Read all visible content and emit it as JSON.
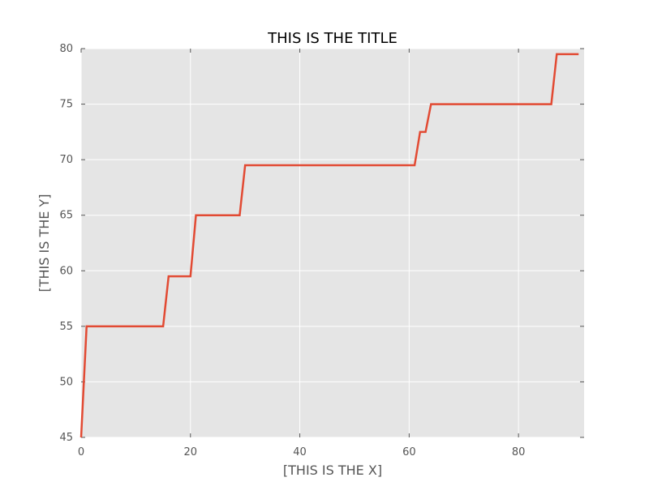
{
  "chart_data": {
    "type": "line",
    "title": "THIS IS THE TITLE",
    "xlabel": "[THIS IS THE X]",
    "ylabel": "[THIS IS THE Y]",
    "xlim": [
      0,
      92
    ],
    "ylim": [
      45,
      80
    ],
    "x_ticks": [
      "0",
      "20",
      "40",
      "60",
      "80"
    ],
    "y_ticks": [
      "45",
      "50",
      "55",
      "60",
      "65",
      "70",
      "75",
      "80"
    ],
    "grid": true,
    "background_color": "#e5e5e5",
    "line_color": "#e24a33",
    "series": [
      {
        "x": [
          0,
          1,
          15,
          16,
          20,
          21,
          29,
          30,
          61,
          62,
          63,
          64,
          86,
          87,
          91
        ],
        "values": [
          45,
          55,
          55,
          59.5,
          59.5,
          65,
          65,
          69.5,
          69.5,
          72.5,
          72.5,
          75,
          75,
          79.5,
          79.5
        ]
      }
    ]
  }
}
